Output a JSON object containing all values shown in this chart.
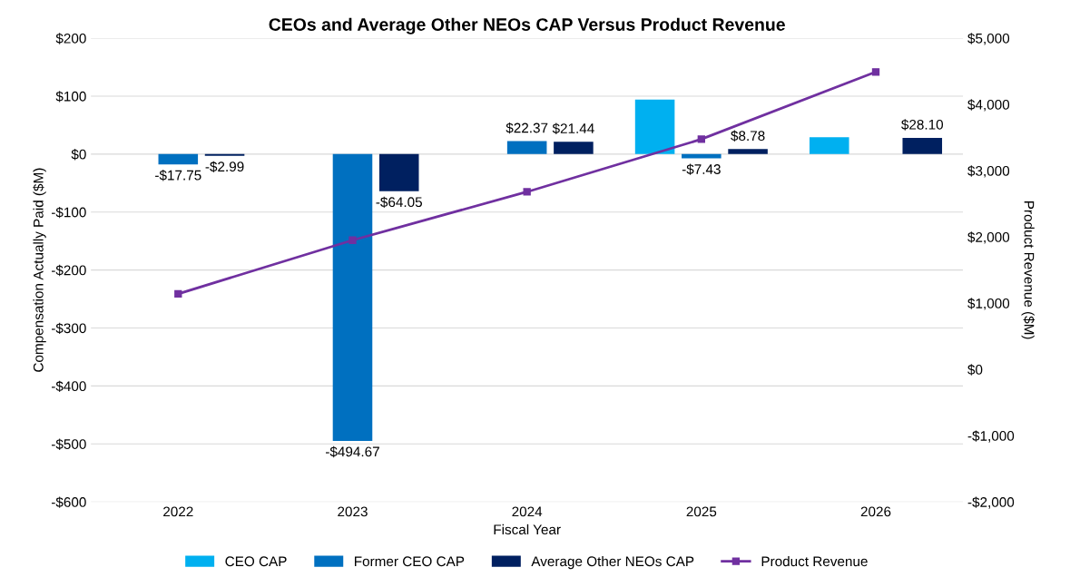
{
  "chart_data": {
    "type": "bar",
    "title": "CEOs and Average Other NEOs CAP Versus Product Revenue",
    "xlabel": "Fiscal Year",
    "ylabel": "Compensation Actually Paid ($M)",
    "y2label": "Product Revenue ($M)",
    "categories": [
      "2022",
      "2023",
      "2024",
      "2025",
      "2026"
    ],
    "series": [
      {
        "name": "CEO CAP",
        "color": "#00b0f0",
        "values": [
          null,
          null,
          null,
          94,
          29
        ],
        "value_labels": [
          null,
          null,
          null,
          null,
          null
        ]
      },
      {
        "name": "Former CEO CAP",
        "color": "#0070c0",
        "values": [
          -17.75,
          -494.67,
          22.37,
          -7.43,
          null
        ],
        "value_labels": [
          "-$17.75",
          "-$494.67",
          "$22.37",
          "-$7.43",
          null
        ]
      },
      {
        "name": "Average Other NEOs CAP",
        "color": "#002060",
        "values": [
          -2.99,
          -64.05,
          21.44,
          8.78,
          28.1
        ],
        "value_labels": [
          "-$2.99",
          "-$64.05",
          "$21.44",
          "$8.78",
          "$28.10"
        ]
      },
      {
        "name": "Product Revenue",
        "color": "#7030a0",
        "type": "line",
        "axis": "y2",
        "marker": "square",
        "values": [
          1140,
          1950,
          2680,
          3475,
          4490
        ]
      }
    ],
    "ylim": [
      -600,
      200
    ],
    "yticks": [
      {
        "value": -600,
        "label": "-$600"
      },
      {
        "value": -500,
        "label": "-$500"
      },
      {
        "value": -400,
        "label": "-$400"
      },
      {
        "value": -300,
        "label": "-$300"
      },
      {
        "value": -200,
        "label": "-$200"
      },
      {
        "value": -100,
        "label": "-$100"
      },
      {
        "value": 0,
        "label": "$0"
      },
      {
        "value": 100,
        "label": "$100"
      },
      {
        "value": 200,
        "label": "$200"
      }
    ],
    "y2lim": [
      -2000,
      5000
    ],
    "y2ticks": [
      {
        "value": -2000,
        "label": "-$2,000"
      },
      {
        "value": -1000,
        "label": "-$1,000"
      },
      {
        "value": 0,
        "label": "$0"
      },
      {
        "value": 1000,
        "label": "$1,000"
      },
      {
        "value": 2000,
        "label": "$2,000"
      },
      {
        "value": 3000,
        "label": "$3,000"
      },
      {
        "value": 4000,
        "label": "$4,000"
      },
      {
        "value": 5000,
        "label": "$5,000"
      }
    ],
    "grid": "y",
    "legend": "bottom"
  }
}
